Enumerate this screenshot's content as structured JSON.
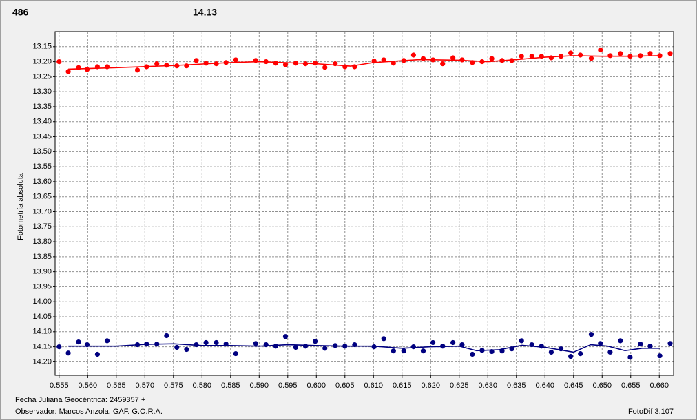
{
  "chart_data": {
    "type": "scatter",
    "ylabel": "Fotometría absoluta",
    "xlabel": "Fecha Juliana Geocéntrica: 2459357 +",
    "observer": "Observador:  Marcos Anzola. GAF. G.O.R.A.",
    "software": "FotoDif 3.107",
    "y_inverted": true,
    "grid": true,
    "xlim": [
      0.5543,
      0.6625
    ],
    "ylim": [
      13.1,
      14.245
    ],
    "xticks": [
      0.555,
      {
        "value": 0.56,
        "label": "0.560"
      },
      0.565,
      {
        "value": 0.57,
        "label": "0.570"
      },
      0.575,
      {
        "value": 0.58,
        "label": "0.580"
      },
      0.585,
      {
        "value": 0.59,
        "label": "0.590"
      },
      0.595,
      {
        "value": 0.6,
        "label": "0.600"
      },
      0.605,
      {
        "value": 0.61,
        "label": "0.610"
      },
      0.615,
      {
        "value": 0.62,
        "label": "0.620"
      },
      0.625,
      {
        "value": 0.63,
        "label": "0.630"
      },
      0.635,
      {
        "value": 0.64,
        "label": "0.640"
      },
      0.645,
      {
        "value": 0.65,
        "label": "0.650"
      },
      0.655,
      {
        "value": 0.66,
        "label": "0.660"
      }
    ],
    "yticks": [
      13.15,
      {
        "value": 13.2,
        "label": "13.20"
      },
      13.25,
      {
        "value": 13.3,
        "label": "13.30"
      },
      13.35,
      {
        "value": 13.4,
        "label": "13.40"
      },
      13.45,
      {
        "value": 13.5,
        "label": "13.50"
      },
      13.55,
      {
        "value": 13.6,
        "label": "13.60"
      },
      13.65,
      {
        "value": 13.7,
        "label": "13.70"
      },
      13.75,
      {
        "value": 13.8,
        "label": "13.80"
      },
      13.85,
      {
        "value": 13.9,
        "label": "13.90"
      },
      13.95,
      {
        "value": 14,
        "label": "14.00"
      },
      14.05,
      {
        "value": 14.1,
        "label": "14.10"
      },
      14.15,
      {
        "value": 14.2,
        "label": "14.20"
      }
    ],
    "x": [
      0.555,
      0.5566,
      0.5584,
      0.5599,
      0.5617,
      0.5634,
      0.5687,
      0.5703,
      0.5721,
      0.5738,
      0.5756,
      0.5773,
      0.579,
      0.5807,
      0.5825,
      0.5842,
      0.5859,
      0.5894,
      0.5912,
      0.5929,
      0.5946,
      0.5964,
      0.5981,
      0.5998,
      0.6015,
      0.6033,
      0.605,
      0.6067,
      0.6101,
      0.6118,
      0.6135,
      0.6153,
      0.617,
      0.6187,
      0.6204,
      0.6221,
      0.6239,
      0.6255,
      0.6273,
      0.629,
      0.6307,
      0.6325,
      0.6342,
      0.6359,
      0.6377,
      0.6394,
      0.6411,
      0.6428,
      0.6445,
      0.6462,
      0.6481,
      0.6497,
      0.6514,
      0.6532,
      0.6549,
      0.6567,
      0.6584,
      0.6601,
      0.6619
    ],
    "series": [
      {
        "name": "486",
        "color": "#ff0000",
        "values": [
          13.2,
          13.233,
          13.22,
          13.226,
          13.217,
          13.217,
          13.228,
          13.217,
          13.207,
          13.212,
          13.214,
          13.214,
          13.196,
          13.205,
          13.207,
          13.203,
          13.194,
          13.196,
          13.2,
          13.205,
          13.21,
          13.205,
          13.207,
          13.205,
          13.219,
          13.207,
          13.217,
          13.217,
          13.198,
          13.194,
          13.205,
          13.196,
          13.178,
          13.19,
          13.194,
          13.207,
          13.187,
          13.194,
          13.203,
          13.2,
          13.19,
          13.196,
          13.196,
          13.182,
          13.182,
          13.182,
          13.187,
          13.182,
          13.171,
          13.178,
          13.189,
          13.161,
          13.18,
          13.173,
          13.182,
          13.18,
          13.173,
          13.18,
          13.173
        ],
        "fit": {
          "x": [
            0.5566,
            0.565,
            0.575,
            0.585,
            0.59,
            0.6,
            0.606,
            0.61,
            0.618,
            0.625,
            0.63,
            0.635,
            0.64,
            0.645,
            0.65,
            0.655,
            0.6601
          ],
          "values": [
            13.225,
            13.22,
            13.213,
            13.203,
            13.2,
            13.207,
            13.215,
            13.203,
            13.193,
            13.195,
            13.2,
            13.193,
            13.185,
            13.18,
            13.182,
            13.182,
            13.18
          ]
        }
      },
      {
        "name": "14.13",
        "color": "#000080",
        "values": [
          14.15,
          14.171,
          14.134,
          14.143,
          14.175,
          14.13,
          14.143,
          14.141,
          14.141,
          14.113,
          14.152,
          14.159,
          14.143,
          14.136,
          14.136,
          14.141,
          14.173,
          14.139,
          14.143,
          14.148,
          14.116,
          14.152,
          14.148,
          14.132,
          14.155,
          14.146,
          14.148,
          14.143,
          14.15,
          14.123,
          14.164,
          14.164,
          14.15,
          14.164,
          14.136,
          14.148,
          14.136,
          14.143,
          14.175,
          14.162,
          14.166,
          14.164,
          14.157,
          14.13,
          14.143,
          14.148,
          14.168,
          14.157,
          14.182,
          14.173,
          14.109,
          14.139,
          14.168,
          14.13,
          14.185,
          14.141,
          14.148,
          14.18,
          14.139
        ],
        "fit": {
          "x": [
            0.5566,
            0.565,
            0.57,
            0.575,
            0.58,
            0.585,
            0.59,
            0.595,
            0.6,
            0.605,
            0.61,
            0.615,
            0.62,
            0.625,
            0.628,
            0.632,
            0.636,
            0.64,
            0.645,
            0.648,
            0.651,
            0.654,
            0.657,
            0.6601
          ],
          "values": [
            14.148,
            14.148,
            14.142,
            14.14,
            14.146,
            14.146,
            14.148,
            14.143,
            14.146,
            14.148,
            14.148,
            14.155,
            14.15,
            14.148,
            14.163,
            14.16,
            14.145,
            14.152,
            14.168,
            14.143,
            14.148,
            14.163,
            14.155,
            14.155
          ]
        }
      }
    ]
  }
}
